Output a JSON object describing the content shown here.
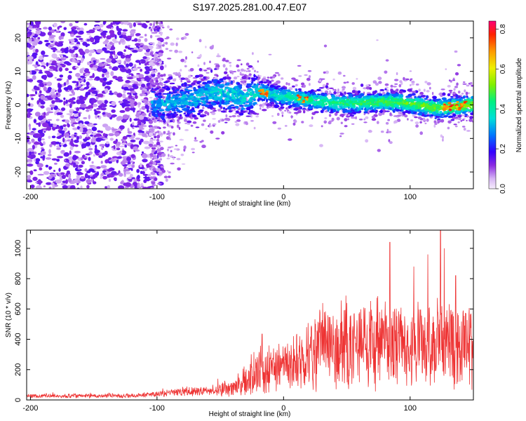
{
  "title": "S197.2025.281.00.47.E07",
  "chart_data": [
    {
      "type": "heatmap",
      "title": "S197.2025.281.00.47.E07",
      "xlabel": "Height of straight line (km)",
      "ylabel": "Frequency (Hz)",
      "xlim": [
        -203,
        150
      ],
      "ylim": [
        -25,
        25
      ],
      "xticks": [
        -200,
        -100,
        0,
        100
      ],
      "yticks": [
        -20,
        -10,
        0,
        10,
        20
      ],
      "colorbar": {
        "label": "Normalized spectral amplitude",
        "range": [
          0,
          0.84
        ],
        "ticks": [
          "0.0",
          "0.2",
          "0.4",
          "0.6",
          "0.8"
        ]
      },
      "ridge": {
        "description": "signal band near 0 Hz drifting slightly",
        "points": [
          [
            -100,
            0
          ],
          [
            -70,
            2
          ],
          [
            -55,
            4
          ],
          [
            -30,
            2
          ],
          [
            -20,
            4
          ],
          [
            0,
            2.5
          ],
          [
            20,
            1.5
          ],
          [
            40,
            0.5
          ],
          [
            60,
            0.5
          ],
          [
            80,
            1
          ],
          [
            100,
            0.5
          ],
          [
            120,
            -1
          ],
          [
            150,
            0
          ]
        ],
        "peak_positions_km": [
          -15,
          15,
          130,
          140
        ]
      },
      "noise_region_km": [
        -203,
        -100
      ]
    },
    {
      "type": "line",
      "xlabel": "Height of straight line (km)",
      "ylabel": "SNR (10 * v/v)",
      "xlim": [
        -203,
        150
      ],
      "ylim": [
        0,
        1120
      ],
      "xticks": [
        -200,
        -100,
        0,
        100
      ],
      "yticks": [
        0,
        200,
        400,
        600,
        800,
        1000
      ],
      "series": [
        {
          "name": "SNR",
          "color": "#ee3333",
          "envelope_x": [
            -203,
            -120,
            -100,
            -80,
            -60,
            -40,
            -30,
            -20,
            -10,
            0,
            20,
            40,
            60,
            80,
            100,
            120,
            150
          ],
          "envelope_mean": [
            25,
            25,
            35,
            50,
            55,
            70,
            120,
            180,
            200,
            190,
            280,
            320,
            330,
            350,
            330,
            360,
            330
          ],
          "spikes": [
            [
              -52,
              140
            ],
            [
              -17,
              435
            ],
            [
              36,
              545
            ],
            [
              50,
              640
            ],
            [
              84,
              1040
            ],
            [
              103,
              880
            ],
            [
              114,
              960
            ],
            [
              124,
              1120
            ],
            [
              127,
              1000
            ],
            [
              136,
              820
            ],
            [
              144,
              570
            ]
          ]
        }
      ]
    }
  ]
}
